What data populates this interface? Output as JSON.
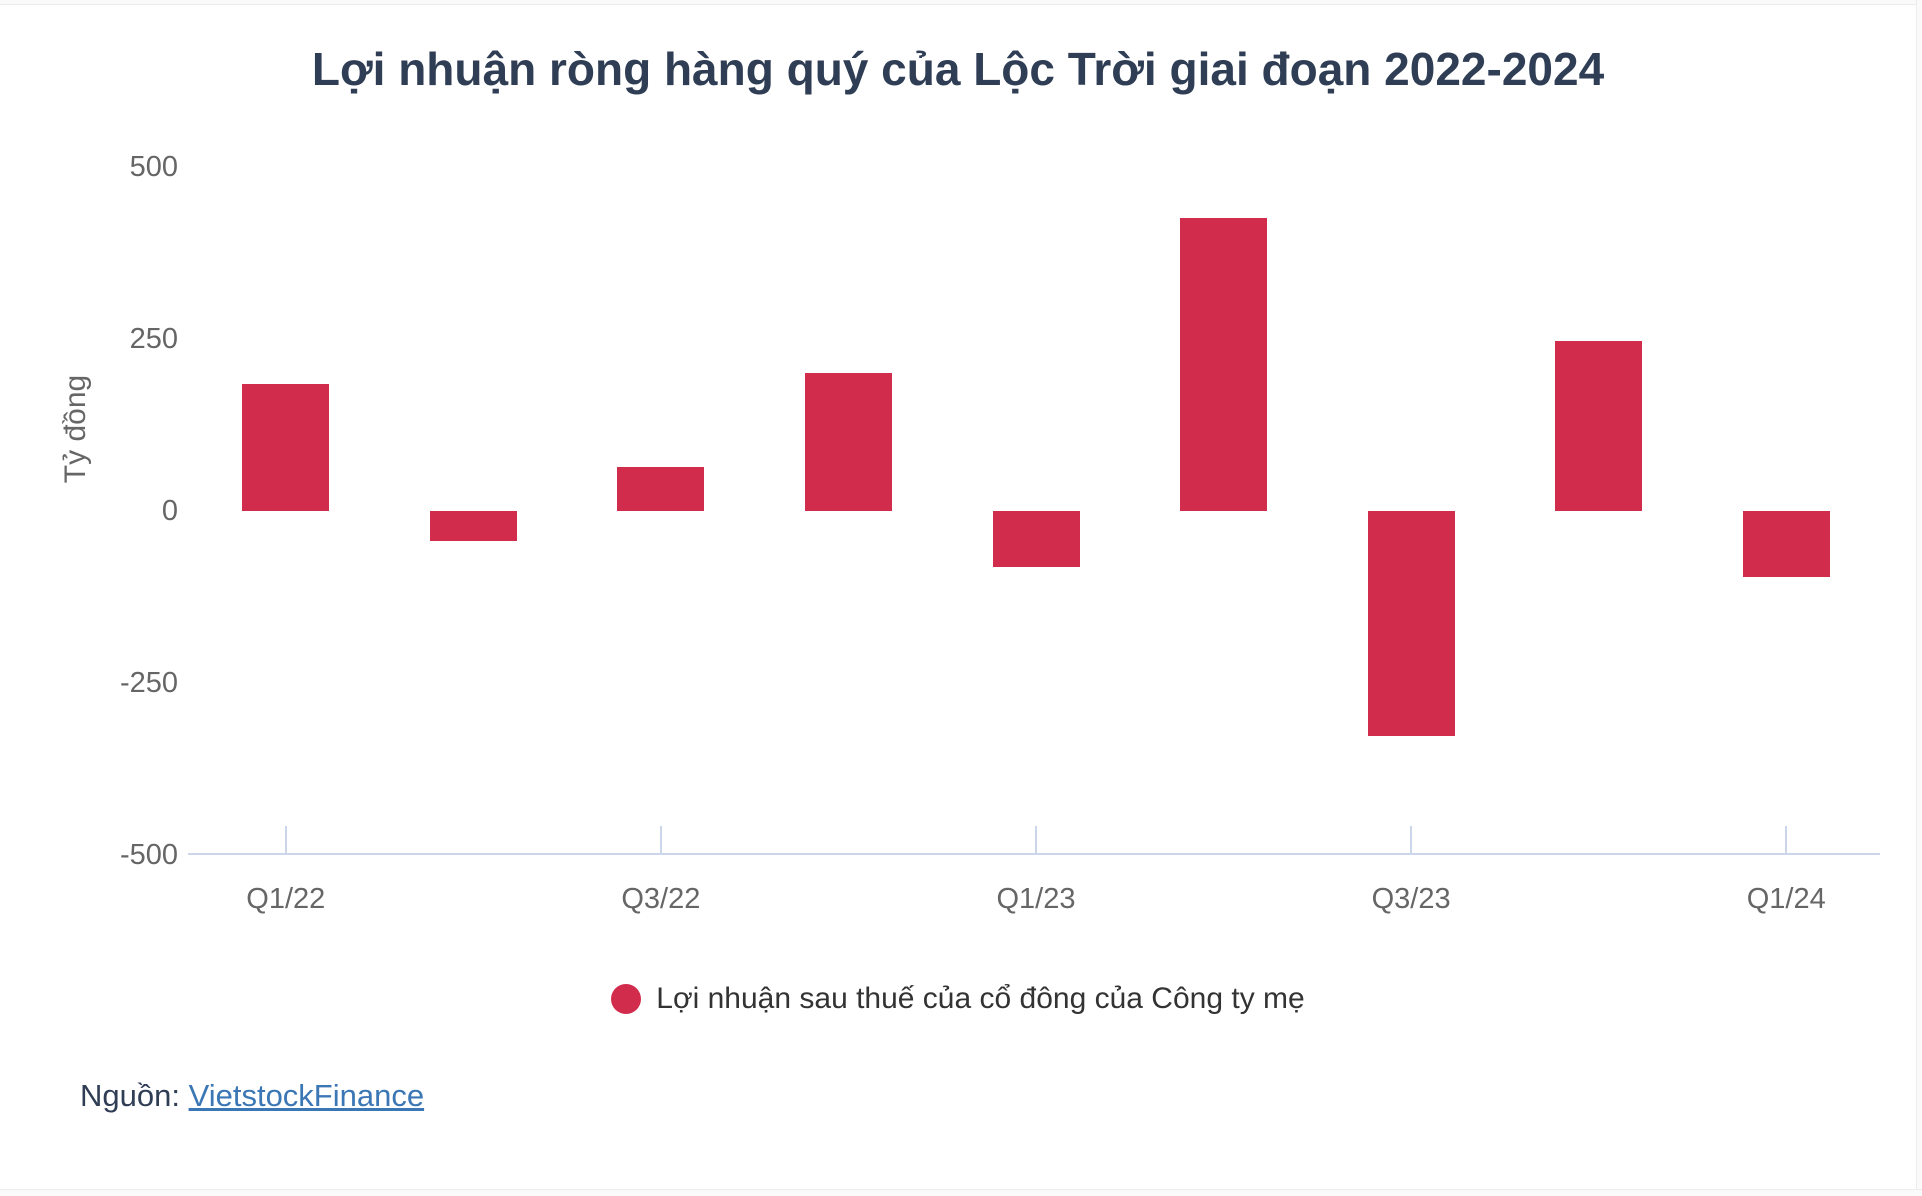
{
  "chart_data": {
    "type": "bar",
    "title": "Lợi nhuận ròng hàng quý của Lộc Trời giai đoạn 2022-2024",
    "categories": [
      "Q1/22",
      "Q2/22",
      "Q3/22",
      "Q4/22",
      "Q1/23",
      "Q2/23",
      "Q3/23",
      "Q4/23",
      "Q1/24"
    ],
    "series": [
      {
        "name": "Lợi nhuận sau thuế của cổ đông của Công ty mẹ",
        "values": [
          184,
          -44,
          64,
          201,
          -81,
          426,
          -327,
          247,
          -96
        ],
        "color": "#d22c4d"
      }
    ],
    "ylabel": "Tỷ đồng",
    "ylim": [
      -500,
      500
    ],
    "yticks": [
      500,
      250,
      0,
      -250,
      -500
    ],
    "xtick_labels": [
      "Q1/22",
      "Q3/22",
      "Q1/23",
      "Q3/23",
      "Q1/24"
    ],
    "xtick_category_indexes": [
      0,
      2,
      4,
      6,
      8
    ],
    "grid": false,
    "legend_position": "bottom"
  },
  "legend": {
    "label": "Lợi nhuận sau thuế của cổ đông của Công ty mẹ"
  },
  "footer": {
    "source_label": "Nguồn:",
    "source_link": "VietstockFinance"
  },
  "colors": {
    "bar": "#d22c4d",
    "axis": "#ccd6eb",
    "tick_label": "#666666",
    "title": "#2f3e55",
    "legend_text": "#333333",
    "link": "#3b77b5",
    "page_bg": "#fafafa",
    "card_bg": "#ffffff"
  }
}
